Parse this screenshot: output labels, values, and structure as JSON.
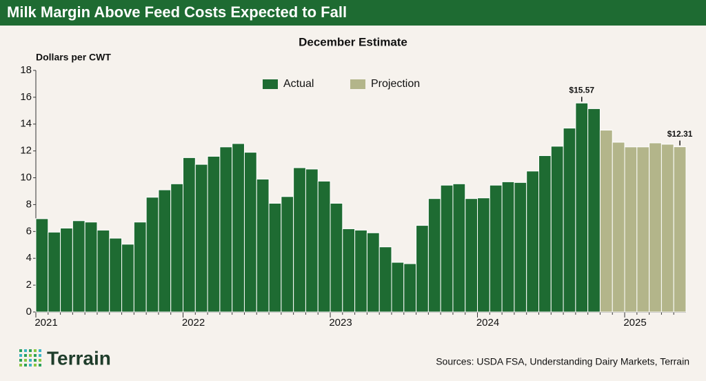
{
  "header": {
    "title": "Milk Margin Above Feed Costs Expected to Fall"
  },
  "chart_data": {
    "type": "bar",
    "title": "December Estimate",
    "y_label": "Dollars per CWT",
    "categories": [
      "2021",
      null,
      null,
      null,
      null,
      null,
      null,
      null,
      null,
      null,
      null,
      null,
      "2022",
      null,
      null,
      null,
      null,
      null,
      null,
      null,
      null,
      null,
      null,
      null,
      "2023",
      null,
      null,
      null,
      null,
      null,
      null,
      null,
      null,
      null,
      null,
      null,
      "2024",
      null,
      null,
      null,
      null,
      null,
      null,
      null,
      null,
      null,
      null,
      null,
      "2025",
      null,
      null,
      null,
      null
    ],
    "series": [
      {
        "name": "Actual",
        "color": "#1e6b32",
        "values": [
          6.95,
          5.95,
          6.25,
          6.8,
          6.7,
          6.1,
          5.5,
          5.05,
          6.7,
          8.55,
          9.1,
          9.55,
          11.5,
          11.0,
          11.6,
          12.3,
          12.55,
          11.9,
          9.9,
          8.1,
          8.6,
          10.75,
          10.65,
          9.75,
          8.1,
          6.2,
          6.1,
          5.9,
          4.85,
          3.7,
          3.6,
          6.45,
          8.45,
          9.45,
          9.55,
          8.45,
          8.5,
          9.45,
          9.7,
          9.65,
          10.5,
          11.65,
          12.35,
          13.7,
          15.57,
          15.15,
          null,
          null,
          null,
          null,
          null,
          null,
          null
        ],
        "value_labels": [
          null,
          null,
          null,
          null,
          null,
          null,
          null,
          null,
          null,
          null,
          null,
          null,
          null,
          null,
          null,
          null,
          null,
          null,
          null,
          null,
          null,
          null,
          null,
          null,
          null,
          null,
          null,
          null,
          null,
          null,
          null,
          null,
          null,
          null,
          null,
          null,
          null,
          null,
          null,
          null,
          null,
          null,
          null,
          null,
          "$15.57",
          null,
          null,
          null,
          null,
          null,
          null,
          null,
          null
        ]
      },
      {
        "name": "Projection",
        "color": "#b3b58a",
        "values": [
          null,
          null,
          null,
          null,
          null,
          null,
          null,
          null,
          null,
          null,
          null,
          null,
          null,
          null,
          null,
          null,
          null,
          null,
          null,
          null,
          null,
          null,
          null,
          null,
          null,
          null,
          null,
          null,
          null,
          null,
          null,
          null,
          null,
          null,
          null,
          null,
          null,
          null,
          null,
          null,
          null,
          null,
          null,
          null,
          null,
          null,
          13.55,
          12.65,
          12.3,
          12.3,
          12.6,
          12.5,
          12.31
        ],
        "value_labels": [
          null,
          null,
          null,
          null,
          null,
          null,
          null,
          null,
          null,
          null,
          null,
          null,
          null,
          null,
          null,
          null,
          null,
          null,
          null,
          null,
          null,
          null,
          null,
          null,
          null,
          null,
          null,
          null,
          null,
          null,
          null,
          null,
          null,
          null,
          null,
          null,
          null,
          null,
          null,
          null,
          null,
          null,
          null,
          null,
          null,
          null,
          null,
          null,
          null,
          null,
          null,
          null,
          "$12.31"
        ]
      }
    ],
    "ylim": [
      0,
      18
    ],
    "yticks": [
      0,
      2,
      4,
      6,
      8,
      10,
      12,
      14,
      16,
      18
    ],
    "grid": false,
    "legend": "top"
  },
  "footer": {
    "logo": "Terrain",
    "source": "Sources: USDA FSA, Understanding Dairy Markets, Terrain"
  }
}
